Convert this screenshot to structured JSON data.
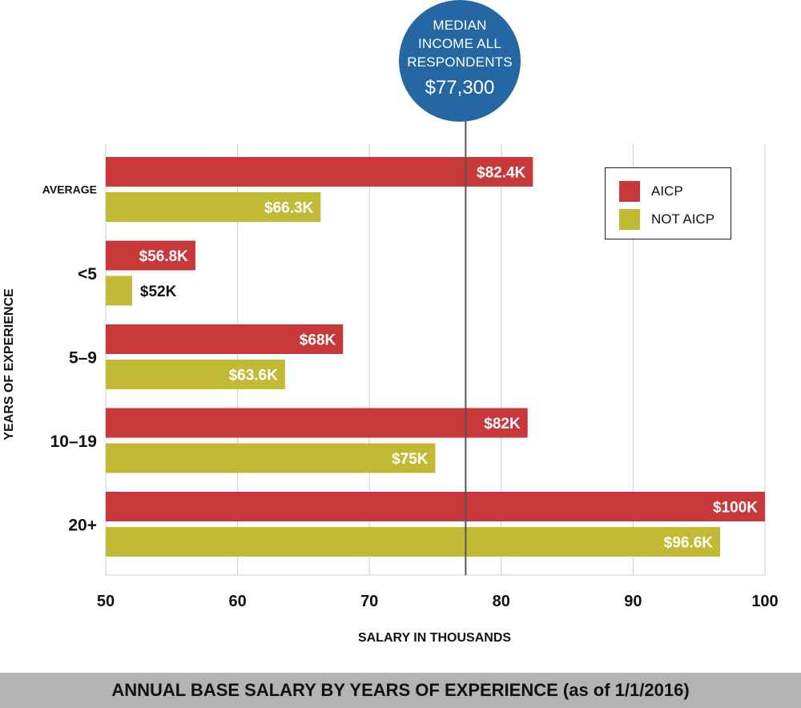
{
  "chart_data": {
    "type": "bar",
    "orientation": "horizontal",
    "categories": [
      "AVERAGE",
      "<5",
      "5–9",
      "10–19",
      "20+"
    ],
    "series": [
      {
        "name": "AICP",
        "color": "#c8373a",
        "values": [
          82.4,
          56.8,
          68,
          82,
          100
        ],
        "labels": [
          "$82.4K",
          "$56.8K",
          "$68K",
          "$82K",
          "$100K"
        ]
      },
      {
        "name": "NOT AICP",
        "color": "#c2b935",
        "values": [
          66.3,
          52,
          63.6,
          75,
          96.6
        ],
        "labels": [
          "$66.3K",
          "$52K",
          "$63.6K",
          "$75K",
          "$96.6K"
        ]
      }
    ],
    "xlim": [
      50,
      100
    ],
    "xticks": [
      50,
      60,
      70,
      80,
      90,
      100
    ],
    "xlabel": "SALARY IN THOUSANDS",
    "ylabel": "YEARS OF EXPERIENCE",
    "grid": true,
    "legend": "top-right",
    "reference_line": {
      "value": 77.3
    },
    "title": "ANNUAL BASE SALARY BY YEARS OF EXPERIENCE (as of 1/1/2016)"
  },
  "median": {
    "line1": "MEDIAN",
    "line2": "INCOME ALL",
    "line3": "RESPONDENTS",
    "value": "$77,300"
  },
  "legend": {
    "aicp_label": "AICP",
    "not_aicp_label": "NOT AICP"
  }
}
